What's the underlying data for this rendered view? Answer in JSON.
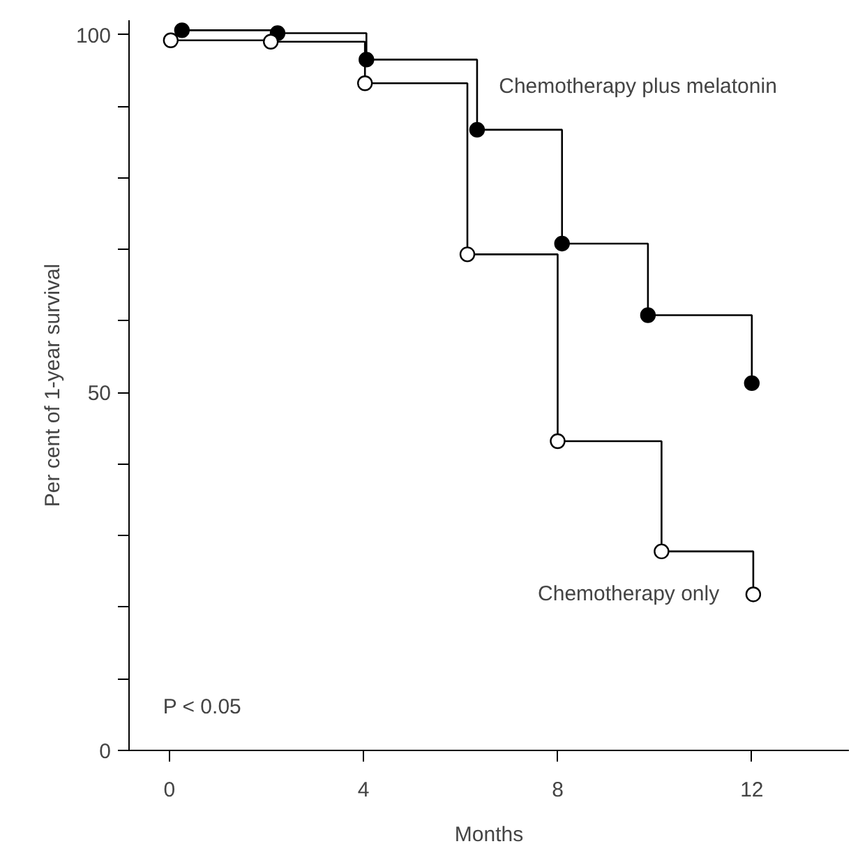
{
  "chart_data": {
    "type": "step",
    "xlabel": "Months",
    "ylabel": "Per cent of 1-year survival",
    "xlim": [
      -0.83,
      14
    ],
    "ylim": [
      0,
      102
    ],
    "xticks": [
      0,
      4,
      8,
      12
    ],
    "yticks": [
      0,
      {
        "value": 10,
        "label": null
      },
      {
        "value": 20,
        "label": null
      },
      {
        "value": 30,
        "label": null
      },
      {
        "value": 40,
        "label": null
      },
      50,
      {
        "value": 60,
        "label": null
      },
      {
        "value": 70,
        "label": null
      },
      {
        "value": 80,
        "label": null
      },
      {
        "value": 90,
        "label": null
      },
      100
    ],
    "marker": "circle",
    "grid": false,
    "series": [
      {
        "name": "Chemotherapy plus melatonin",
        "color": "#000000",
        "x": [
          0.26,
          2.23,
          4.06,
          6.34,
          8.09,
          9.86,
          12.0
        ],
        "values": [
          100.6,
          100.2,
          96.5,
          86.7,
          70.8,
          60.8,
          51.3
        ]
      },
      {
        "name": "Chemotherapy only",
        "color": "#000000",
        "x": [
          0.03,
          2.09,
          4.03,
          6.14,
          8.0,
          10.14,
          12.03
        ],
        "values": [
          99.2,
          99.0,
          93.2,
          69.3,
          43.2,
          27.8,
          21.8
        ]
      }
    ],
    "annotations": [
      {
        "text": "P < 0.05"
      }
    ]
  }
}
